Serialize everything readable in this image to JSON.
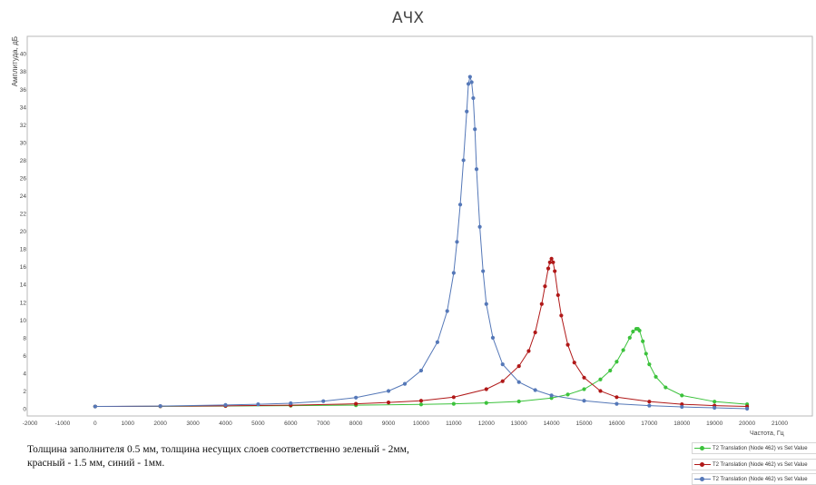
{
  "chart_data": {
    "type": "line",
    "title": "АЧХ",
    "xlabel": "Частота, Гц",
    "ylabel": "Амплитуда, дБ",
    "xlim": [
      -2000,
      21000
    ],
    "ylim": [
      -1,
      42
    ],
    "x_ticks": [
      -2000,
      -1000,
      0,
      1000,
      2000,
      3000,
      4000,
      5000,
      6000,
      7000,
      8000,
      9000,
      10000,
      11000,
      12000,
      13000,
      14000,
      15000,
      16000,
      17000,
      18000,
      19000,
      20000,
      21000
    ],
    "y_ticks": [
      0,
      2,
      4,
      6,
      8,
      10,
      12,
      14,
      16,
      18,
      20,
      22,
      24,
      26,
      28,
      30,
      32,
      34,
      36,
      38,
      40
    ],
    "grid": false,
    "legend_position": "bottom-right",
    "series": [
      {
        "name": "T2 Translation (Node 462) vs Set Value",
        "color": "#3cc23c",
        "x": [
          0,
          2000,
          4000,
          6000,
          8000,
          10000,
          11000,
          12000,
          13000,
          14000,
          14500,
          15000,
          15500,
          15800,
          16000,
          16200,
          16400,
          16500,
          16600,
          16650,
          16700,
          16800,
          16900,
          17000,
          17200,
          17500,
          18000,
          19000,
          20000
        ],
        "values": [
          0.25,
          0.27,
          0.3,
          0.34,
          0.4,
          0.48,
          0.55,
          0.65,
          0.82,
          1.2,
          1.6,
          2.2,
          3.3,
          4.3,
          5.3,
          6.6,
          8.0,
          8.7,
          9.0,
          9.0,
          8.8,
          7.6,
          6.2,
          5.0,
          3.6,
          2.4,
          1.5,
          0.8,
          0.5
        ]
      },
      {
        "name": "T2 Translation (Node 462) vs Set Value",
        "color": "#b01818",
        "x": [
          0,
          2000,
          4000,
          6000,
          8000,
          9000,
          10000,
          11000,
          12000,
          12500,
          13000,
          13300,
          13500,
          13700,
          13800,
          13900,
          13950,
          14000,
          14050,
          14100,
          14200,
          14300,
          14500,
          14700,
          15000,
          15500,
          16000,
          17000,
          18000,
          19000,
          20000
        ],
        "values": [
          0.25,
          0.28,
          0.32,
          0.4,
          0.55,
          0.7,
          0.9,
          1.3,
          2.2,
          3.1,
          4.8,
          6.5,
          8.6,
          11.8,
          13.8,
          15.8,
          16.5,
          16.9,
          16.5,
          15.5,
          12.8,
          10.5,
          7.2,
          5.2,
          3.5,
          2.0,
          1.3,
          0.8,
          0.5,
          0.35,
          0.25
        ]
      },
      {
        "name": "T2 Translation (Node 462) vs Set Value",
        "color": "#5578b8",
        "x": [
          0,
          2000,
          4000,
          5000,
          6000,
          7000,
          8000,
          9000,
          9500,
          10000,
          10500,
          10800,
          11000,
          11100,
          11200,
          11300,
          11400,
          11450,
          11500,
          11550,
          11600,
          11650,
          11700,
          11800,
          11900,
          12000,
          12200,
          12500,
          13000,
          13500,
          14000,
          15000,
          16000,
          17000,
          18000,
          19000,
          20000
        ],
        "values": [
          0.25,
          0.3,
          0.42,
          0.5,
          0.62,
          0.85,
          1.25,
          2.0,
          2.8,
          4.3,
          7.5,
          11.0,
          15.3,
          18.8,
          23.0,
          28.0,
          33.5,
          36.6,
          37.4,
          36.8,
          35.0,
          31.5,
          27.0,
          20.5,
          15.5,
          11.8,
          8.0,
          5.0,
          3.0,
          2.1,
          1.5,
          0.9,
          0.55,
          0.35,
          0.2,
          0.1,
          0.0
        ]
      }
    ]
  },
  "caption": "Толщина заполнителя 0.5 мм, толщина несущих слоев соответственно зеленый - 2мм, красный - 1.5 мм, синий - 1мм."
}
